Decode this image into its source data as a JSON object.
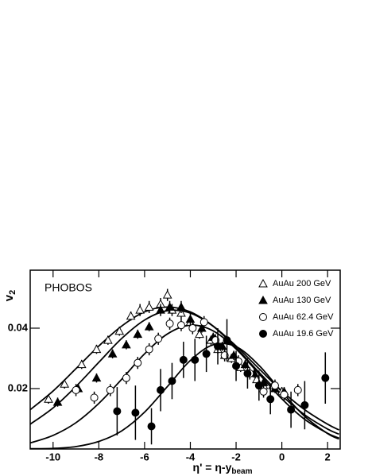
{
  "chart_data": {
    "type": "scatter",
    "annotation": "PHOBOS",
    "ylabel": {
      "text": "v",
      "subscript": "2"
    },
    "xlabel": {
      "text": "η' = η-y",
      "subscript": "beam"
    },
    "xlim": [
      -11,
      2.55
    ],
    "ylim": [
      0,
      0.0592
    ],
    "xticks": [
      -10,
      -8,
      -6,
      -4,
      -2,
      0,
      2
    ],
    "yticks": [
      0.02,
      0.04
    ],
    "legend": "top-right",
    "series": [
      {
        "name": "AuAu 200 GeV",
        "color": "#000000",
        "marker": "triangle-open",
        "x": [
          -10.2,
          -9.5,
          -8.75,
          -8.1,
          -7.6,
          -7.1,
          -6.6,
          -6.2,
          -5.8,
          -5.3,
          -5.0,
          -4.8,
          -4.4,
          -4.0,
          -3.6,
          -3.1,
          -2.8,
          -2.5,
          -2.2,
          -1.8,
          -1.4,
          -1.1,
          -0.8,
          -0.4,
          0.0
        ],
        "values": [
          0.0165,
          0.0215,
          0.028,
          0.033,
          0.036,
          0.039,
          0.044,
          0.046,
          0.047,
          0.048,
          0.051,
          0.046,
          0.045,
          0.042,
          0.038,
          0.036,
          0.033,
          0.031,
          0.03,
          0.027,
          0.025,
          0.023,
          0.021,
          0.021,
          0.019
        ],
        "errors": [
          0.0015,
          0.0015,
          0.0015,
          0.0015,
          0.0015,
          0.0015,
          0.0015,
          0.002,
          0.002,
          0.002,
          0.002,
          0.002,
          0.002,
          0.002,
          0.0015,
          0.0015,
          0.0015,
          0.0015,
          0.0015,
          0.0015,
          0.0015,
          0.0015,
          0.0015,
          0.0015,
          0.0015
        ]
      },
      {
        "name": "AuAu 130 GeV",
        "color": "#000000",
        "marker": "triangle-filled",
        "x": [
          -9.8,
          -8.9,
          -8.1,
          -7.4,
          -6.8,
          -6.3,
          -5.8,
          -5.3,
          -4.9,
          -4.4,
          -4.0,
          -3.5,
          -3.0,
          -2.6,
          -2.1,
          -1.6,
          -1.2,
          -0.8,
          -0.3,
          0.1
        ],
        "values": [
          0.0155,
          0.02,
          0.0235,
          0.0315,
          0.0345,
          0.038,
          0.0405,
          0.046,
          0.047,
          0.047,
          0.043,
          0.04,
          0.037,
          0.034,
          0.031,
          0.028,
          0.025,
          0.022,
          0.02,
          0.019
        ],
        "errors": [
          0.0015,
          0.0015,
          0.0015,
          0.0015,
          0.0015,
          0.0015,
          0.0015,
          0.002,
          0.002,
          0.002,
          0.002,
          0.0015,
          0.0015,
          0.0015,
          0.0015,
          0.0015,
          0.0015,
          0.0015,
          0.0015,
          0.0015
        ]
      },
      {
        "name": "AuAu 62.4 GeV",
        "color": "#000000",
        "marker": "circle-open",
        "x": [
          -9.0,
          -8.2,
          -7.5,
          -6.8,
          -6.3,
          -5.8,
          -5.4,
          -4.9,
          -4.4,
          -3.9,
          -3.4,
          -2.9,
          -2.5,
          -1.9,
          -1.4,
          -0.8,
          -0.3,
          0.1,
          0.7
        ],
        "values": [
          0.0195,
          0.017,
          0.0195,
          0.0235,
          0.0285,
          0.033,
          0.0365,
          0.0415,
          0.041,
          0.04,
          0.042,
          0.036,
          0.031,
          0.029,
          0.025,
          0.019,
          0.021,
          0.018,
          0.0195
        ],
        "errors": [
          0.002,
          0.002,
          0.002,
          0.002,
          0.002,
          0.002,
          0.002,
          0.002,
          0.002,
          0.002,
          0.002,
          0.002,
          0.002,
          0.002,
          0.002,
          0.002,
          0.002,
          0.002,
          0.002
        ]
      },
      {
        "name": "AuAu 19.6 GeV",
        "color": "#000000",
        "marker": "circle-filled",
        "x": [
          -7.2,
          -6.4,
          -5.7,
          -5.3,
          -4.8,
          -4.3,
          -3.8,
          -3.3,
          -2.8,
          -2.4,
          -2.0,
          -1.5,
          -1.0,
          -0.5,
          0.4,
          1.0,
          1.9
        ],
        "values": [
          0.0125,
          0.012,
          0.0075,
          0.0195,
          0.0225,
          0.0295,
          0.0295,
          0.0315,
          0.034,
          0.036,
          0.0275,
          0.025,
          0.021,
          0.0165,
          0.013,
          0.0145,
          0.0235
        ],
        "errors": [
          0.008,
          0.009,
          0.006,
          0.007,
          0.006,
          0.006,
          0.007,
          0.006,
          0.006,
          0.007,
          0.005,
          0.005,
          0.005,
          0.005,
          0.006,
          0.008,
          0.0085
        ]
      }
    ],
    "fit_x": [
      -11,
      -10,
      -9,
      -8,
      -7,
      -6,
      -5,
      -4,
      -3,
      -2,
      -1,
      0,
      1,
      2,
      2.5
    ],
    "fits": [
      {
        "values": [
          0.013,
          0.0192,
          0.0266,
          0.0341,
          0.0407,
          0.0454,
          0.047,
          0.0454,
          0.0407,
          0.0341,
          0.0266,
          0.0192,
          0.013,
          0.0082,
          0.0063
        ]
      },
      {
        "values": [
          0.0082,
          0.0136,
          0.0207,
          0.0287,
          0.0366,
          0.0427,
          0.0458,
          0.045,
          0.0406,
          0.0335,
          0.0254,
          0.0177,
          0.0113,
          0.0066,
          0.0049
        ]
      },
      {
        "values": [
          0.002,
          0.0045,
          0.0087,
          0.0151,
          0.0231,
          0.0315,
          0.0381,
          0.041,
          0.0391,
          0.0331,
          0.0249,
          0.0166,
          0.0098,
          0.0052,
          0.0036
        ]
      },
      {
        "values": [
          0.0001,
          0.0002,
          0.0008,
          0.0025,
          0.006,
          0.0122,
          0.0207,
          0.0293,
          0.0345,
          0.0339,
          0.0277,
          0.0189,
          0.0108,
          0.0051,
          0.0033
        ]
      }
    ]
  }
}
